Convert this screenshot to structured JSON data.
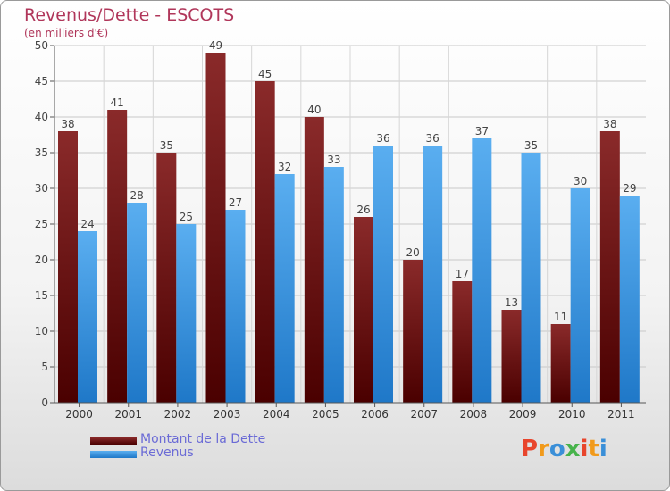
{
  "chart_data": {
    "type": "bar",
    "title": "Revenus/Dette - ESCOTS",
    "subtitle": "(en milliers d'€)",
    "categories": [
      "2000",
      "2001",
      "2002",
      "2003",
      "2004",
      "2005",
      "2006",
      "2007",
      "2008",
      "2009",
      "2010",
      "2011"
    ],
    "series": [
      {
        "name": "Montant de la Dette",
        "color": "#7a1a1a",
        "values": [
          38,
          41,
          35,
          49,
          45,
          40,
          26,
          20,
          17,
          13,
          11,
          38
        ]
      },
      {
        "name": "Revenus",
        "color": "#3c9ae0",
        "values": [
          24,
          28,
          25,
          27,
          32,
          33,
          36,
          36,
          37,
          35,
          30,
          29
        ]
      }
    ],
    "ylim": [
      0,
      50
    ],
    "yticks": [
      0,
      5,
      10,
      15,
      20,
      25,
      30,
      35,
      40,
      45,
      50
    ],
    "grid": true,
    "legend_position": "bottom-left"
  },
  "logo": {
    "text": "Proxiti",
    "colors": [
      "#e8452c",
      "#f19a1b",
      "#3a8fd8",
      "#47b34b",
      "#e8452c",
      "#f19a1b",
      "#3a8fd8"
    ]
  }
}
